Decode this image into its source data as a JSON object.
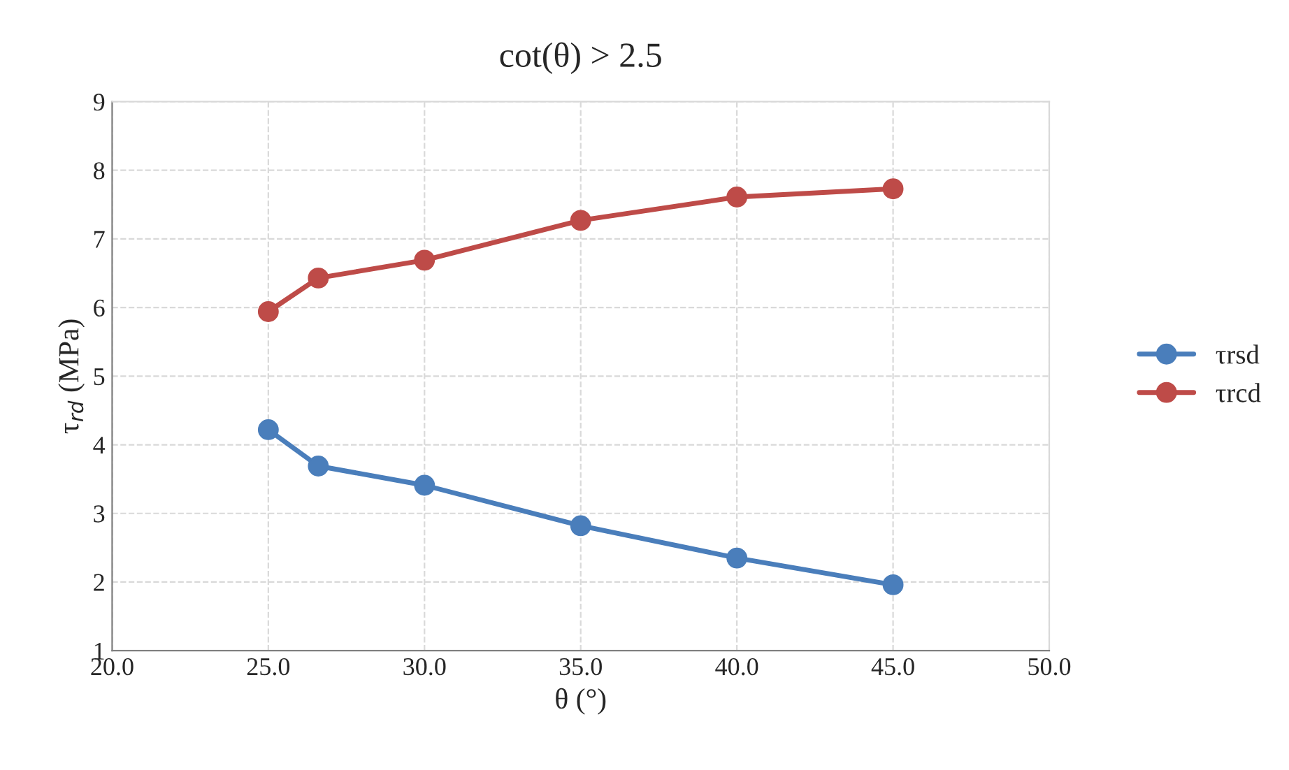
{
  "chart_data": {
    "type": "line",
    "title": "cot(θ) > 2.5",
    "xlabel": "θ (°)",
    "ylabel": "τ$_{rd}$ (MPa)",
    "x": [
      25,
      26.6,
      30,
      35,
      40,
      45
    ],
    "series": [
      {
        "name": "τrsd",
        "color": "#4a7ebb",
        "values": [
          4.22,
          3.69,
          3.41,
          2.82,
          2.35,
          1.96
        ]
      },
      {
        "name": "τrcd",
        "color": "#be4b48",
        "values": [
          5.94,
          6.43,
          6.69,
          7.27,
          7.61,
          7.73
        ]
      }
    ],
    "xlim": [
      20,
      50
    ],
    "xticks": [
      {
        "value": 20,
        "label": "20.0"
      },
      {
        "value": 25,
        "label": "25.0"
      },
      {
        "value": 30,
        "label": "30.0"
      },
      {
        "value": 35,
        "label": "35.0"
      },
      {
        "value": 40,
        "label": "40.0"
      },
      {
        "value": 45,
        "label": "45.0"
      },
      {
        "value": 50,
        "label": "50.0"
      }
    ],
    "ylim": [
      1,
      9
    ],
    "yticks": [
      1,
      2,
      3,
      4,
      5,
      6,
      7,
      8,
      9
    ],
    "grid": true,
    "legend": "right",
    "marker": "circle",
    "line_style": "solid"
  }
}
